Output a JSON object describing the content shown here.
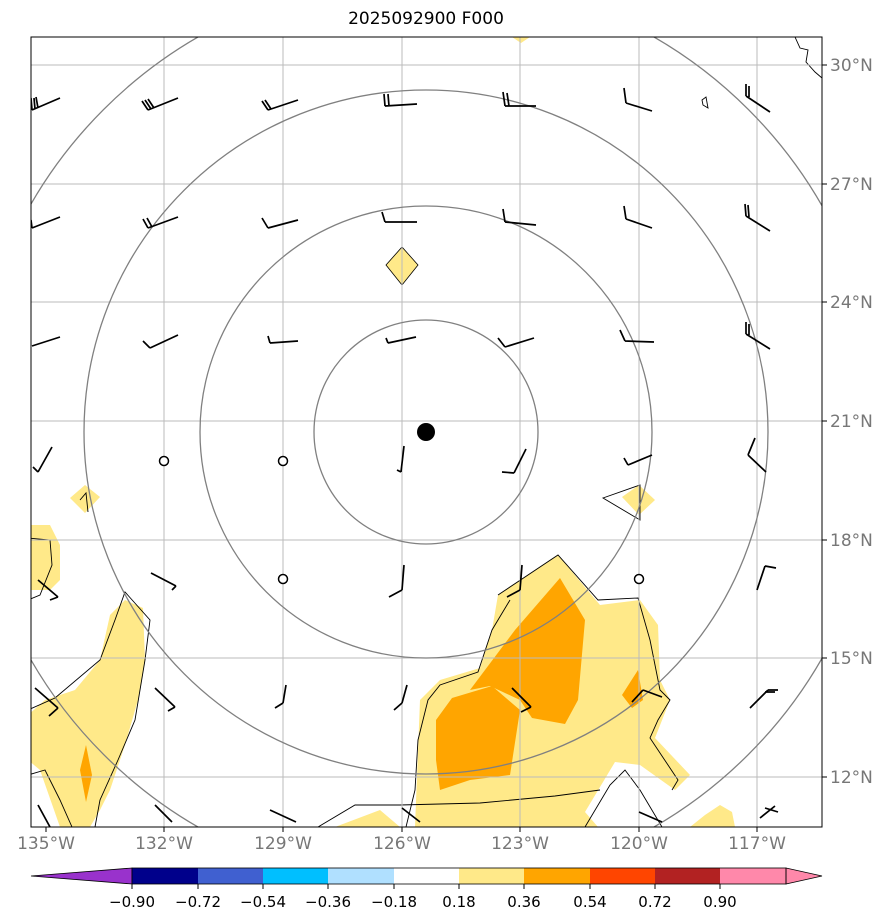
{
  "title": "2025092900 F000",
  "longitude_labels": [
    "135°W",
    "132°W",
    "129°W",
    "126°W",
    "123°W",
    "120°W",
    "117°W"
  ],
  "latitude_labels": [
    "30°N",
    "27°N",
    "24°N",
    "21°N",
    "18°N",
    "15°N",
    "12°N"
  ],
  "colorbar": {
    "tick_labels": [
      "−0.90",
      "−0.72",
      "−0.54",
      "−0.36",
      "−0.18",
      "0.18",
      "0.36",
      "0.54",
      "0.72",
      "0.90"
    ],
    "colors": [
      "#9932cc",
      "#00008b",
      "#4060d0",
      "#00bfff",
      "#b0e0ff",
      "#ffffff",
      "#ffe989",
      "#ffa500",
      "#ff4500",
      "#b22222",
      "#ff88aa",
      "#ff88aa"
    ]
  },
  "map": {
    "lon_range": [
      -135,
      -115
    ],
    "lat_range": [
      10.7,
      30.7
    ],
    "storm_center": {
      "lon": -125.4,
      "lat": 20.75
    },
    "range_ring_radii_deg": [
      2.8,
      5.6,
      8.4,
      11.2
    ],
    "fill_colors": {
      "light": "#ffe989",
      "medium": "#ffa500"
    }
  }
}
